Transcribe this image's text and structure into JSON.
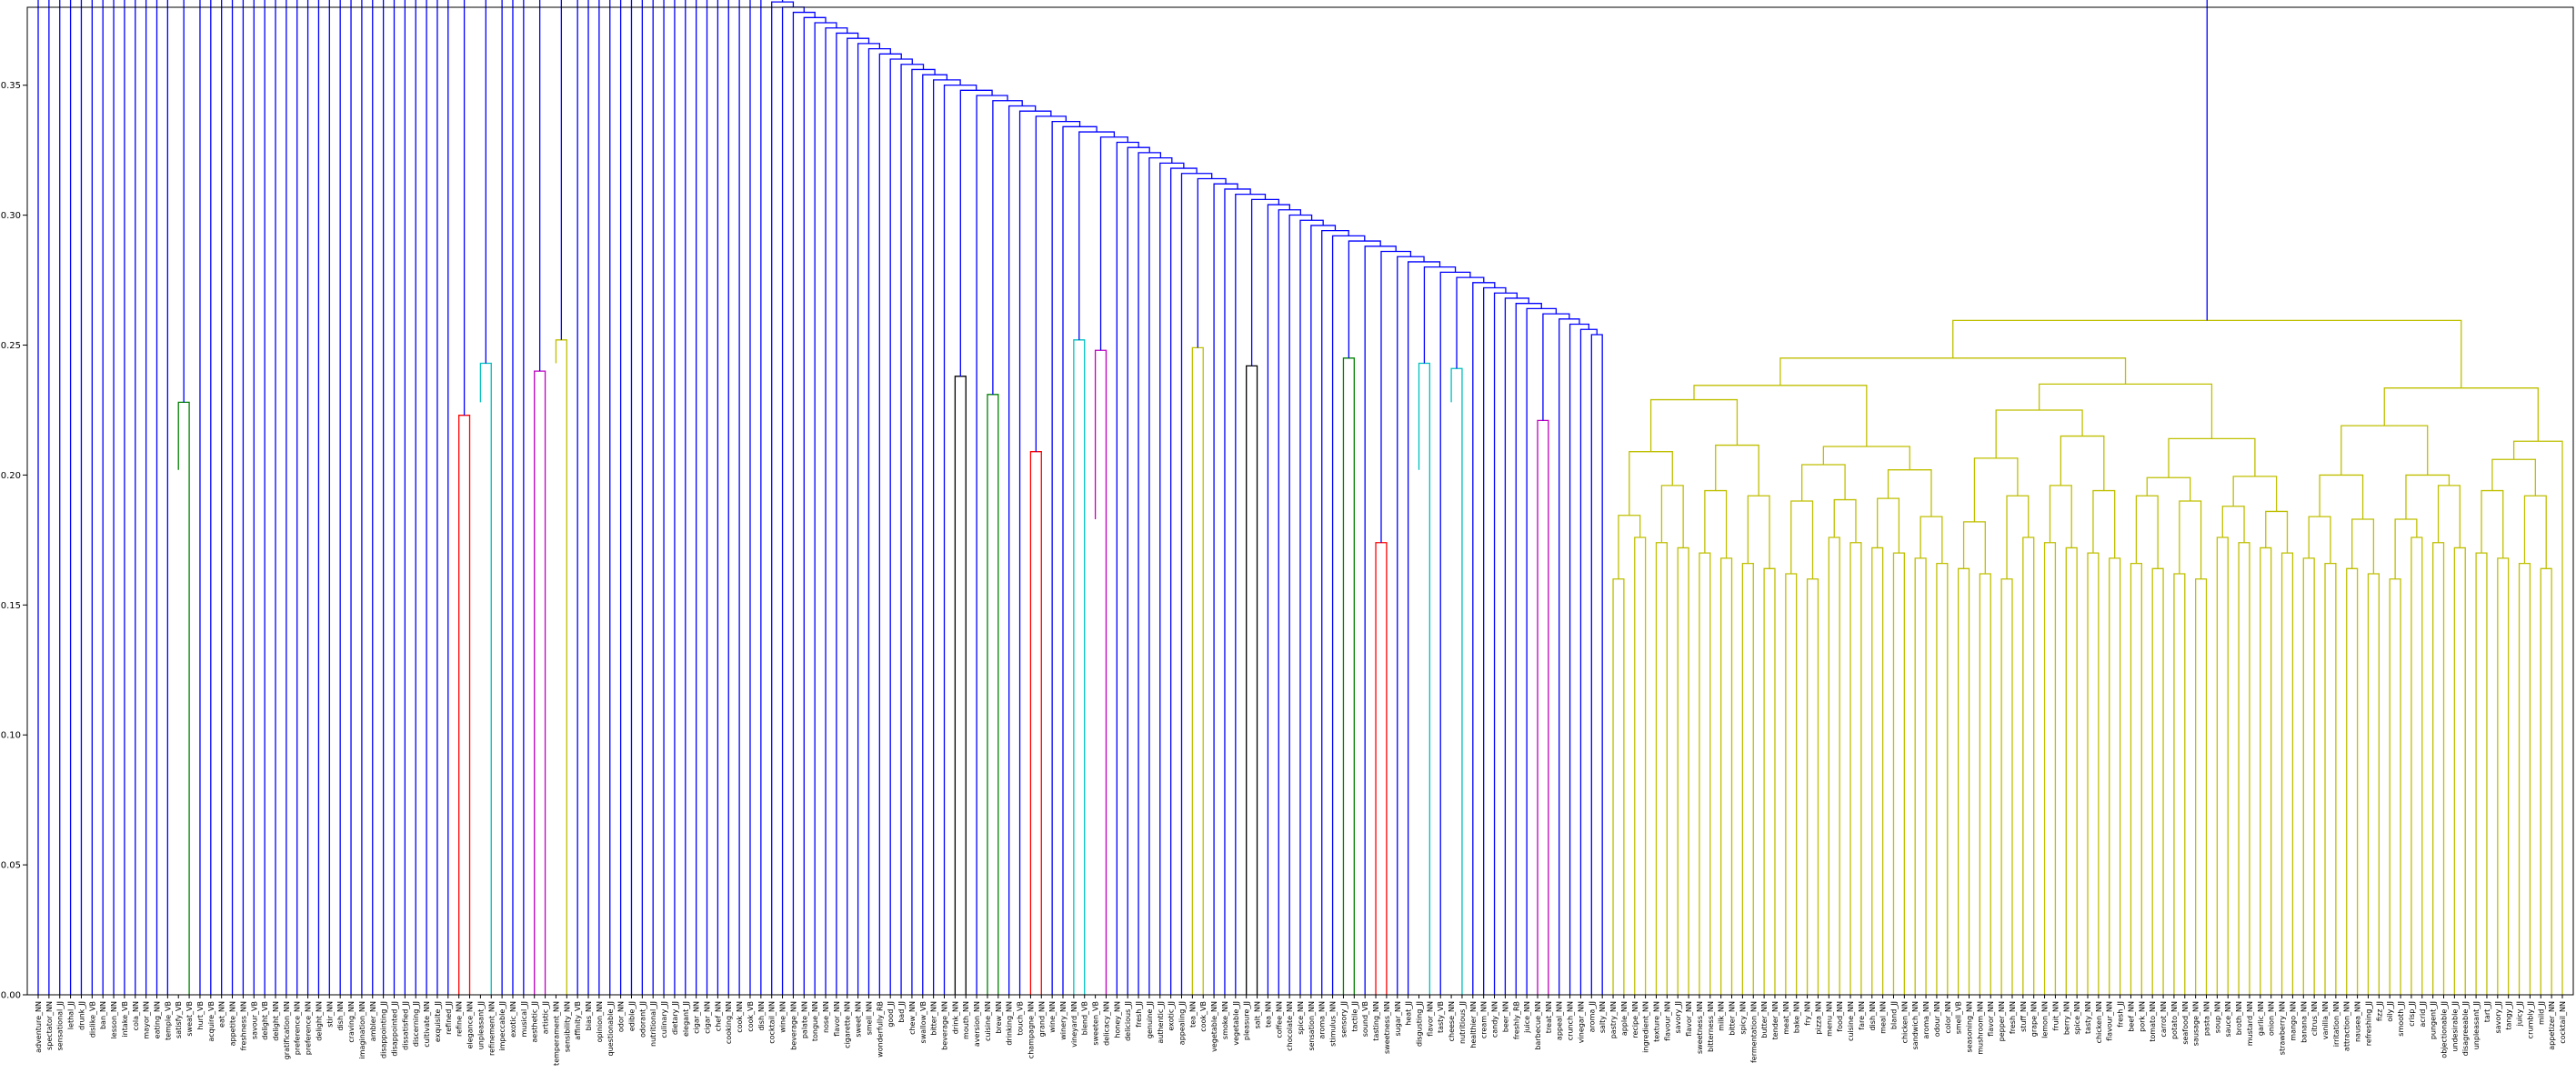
{
  "chart_data": {
    "type": "dendrogram",
    "title": "",
    "xlabel": "",
    "ylabel": "",
    "ylim": [
      0,
      0.38
    ],
    "y_ticks": [
      "0.00",
      "0.05",
      "0.10",
      "0.15",
      "0.20",
      "0.25",
      "0.30",
      "0.35"
    ],
    "grid": false,
    "colors": {
      "blue": "#0000ff",
      "green": "#008000",
      "red": "#ff0000",
      "cyan": "#00bfbf",
      "magenta": "#bf00bf",
      "yellow": "#bfbf00",
      "black": "#000000",
      "frame": "#000000"
    },
    "leaves": [
      "adventure_NN",
      "spectator_NN",
      "sensational_JJ",
      "lethal_JJ",
      "drunk_JJ",
      "dislike_VB",
      "ban_NN",
      "lesson_NN",
      "intake_VB",
      "cola_NN",
      "mayor_NN",
      "eating_NN",
      "temple_VB",
      "satisfy_VB",
      "sweat_VB",
      "hurt_VB",
      "acquire_VB",
      "eat_NN",
      "appetite_NN",
      "freshness_NN",
      "savour_VB",
      "delight_VB",
      "delight_NN",
      "gratification_NN",
      "preference_NN",
      "preference_NN",
      "delight_NN",
      "stir_NN",
      "dish_NN",
      "craving_NN",
      "imagination_NN",
      "ambler_NN",
      "disappointing_JJ",
      "disappointed_JJ",
      "dissatisfied_JJ",
      "discerning_JJ",
      "cultivate_NN",
      "exquisite_JJ",
      "refined_JJ",
      "refine_NN",
      "elegance_NN",
      "unpleasant_JJ",
      "refinement_NN",
      "impeccable_JJ",
      "exotic_NN",
      "musical_JJ",
      "aesthetic_JJ",
      "artistic_JJ",
      "temperament_NN",
      "sensibility_NN",
      "affinity_VB",
      "bias_NN",
      "opinion_NN",
      "questionable_JJ",
      "odor_NN",
      "edible_JJ",
      "odorant_JJ",
      "nutritional_JJ",
      "culinary_JJ",
      "dietary_JJ",
      "elegant_JJ",
      "cigar_NN",
      "cigar_NN",
      "chef_NN",
      "cooking_NN",
      "cook_NN",
      "cook_VB",
      "dish_NN",
      "cocktail_NN",
      "wine_NN",
      "beverage_NN",
      "palate_NN",
      "tongue_NN",
      "nose_NN",
      "flavor_NN",
      "cigarette_NN",
      "sweet_NN",
      "smell_NN",
      "wonderfully_RB",
      "good_JJ",
      "bad_JJ",
      "chew_NN",
      "swallow_VB",
      "bitter_NN",
      "beverage_NN",
      "drink_NN",
      "mouth_NN",
      "aversion_NN",
      "cuisine_NN",
      "brew_NN",
      "drinking_NN",
      "touch_VB",
      "champagne_NN",
      "grand_NN",
      "wine_NN",
      "winery_NN",
      "vineyard_NN",
      "blend_VB",
      "sweeten_VB",
      "delicacy_NN",
      "honey_NN",
      "delicious_JJ",
      "fresh_JJ",
      "genuine_JJ",
      "authentic_JJ",
      "exotic_JJ",
      "appealing_JJ",
      "tea_NN",
      "cook_VB",
      "vegetable_NN",
      "smoke_NN",
      "vegetable_JJ",
      "pleasure_JJ",
      "salt_NN",
      "tea_NN",
      "coffee_NN",
      "chocolate_NN",
      "spice_NN",
      "sensation_NN",
      "aroma_NN",
      "stimulus_NN",
      "sensory_JJ",
      "tactile_JJ",
      "sound_VB",
      "tasting_NN",
      "sweetness_NN",
      "sugar_NN",
      "heat_JJ",
      "disgusting_JJ",
      "flavor_NN",
      "tasty_VB",
      "cheese_NN",
      "nutritious_JJ",
      "healthier_NN",
      "cream_NN",
      "candy_NN",
      "beer_NN",
      "freshly_RB",
      "juice_NN",
      "barbecue_NN",
      "treat_NN",
      "appeal_NN",
      "crunch_NN",
      "vinegar_NN",
      "aroma_JJ",
      "salty_NN",
      "pastry_NN",
      "apple_NN",
      "recipe_NN",
      "ingredient_NN",
      "texture_NN",
      "flavour_NN",
      "savory_JJ",
      "flavor_NN",
      "sweetness_NN",
      "bitterness_NN",
      "milk_NN",
      "bitter_NN",
      "spicy_NN",
      "fermentation_NN",
      "butter_NN",
      "tender_NN",
      "meat_NN",
      "bake_NN",
      "fry_NN",
      "pizza_NN",
      "menu_NN",
      "food_NN",
      "cuisine_NN",
      "fare_NN",
      "dish_NN",
      "meal_NN",
      "bland_JJ",
      "chicken_NN",
      "sandwich_NN",
      "aroma_NN",
      "odour_NN",
      "color_NN",
      "smell_VB",
      "seasoning_NN",
      "mushroom_NN",
      "flavor_NN",
      "pepper_NN",
      "fresh_NN",
      "stuff_NN",
      "grape_NN",
      "lemon_NN",
      "fruit_NN",
      "berry_NN",
      "spice_NN",
      "tasty_NN",
      "chicken_NN",
      "flavour_NN",
      "fresh_JJ",
      "beef_NN",
      "pork_NN",
      "tomato_NN",
      "carrot_NN",
      "potato_NN",
      "seafood_NN",
      "sausage_NN",
      "pasta_NN",
      "soup_NN",
      "sauce_NN",
      "broth_NN",
      "mustard_NN",
      "garlic_NN",
      "onion_NN",
      "strawberry_NN",
      "mango_NN",
      "banana_NN",
      "citrus_NN",
      "vanilla_NN",
      "irritation_NN",
      "attraction_NN",
      "nausea_NN",
      "refreshing_JJ",
      "fizz_JJ",
      "oily_JJ",
      "smooth_JJ",
      "crisp_JJ",
      "acrid_JJ",
      "pungent_JJ",
      "objectionable_JJ",
      "undesirable_JJ",
      "disagreeable_JJ",
      "unpleasant_JJ",
      "tart_JJ",
      "savory_JJ",
      "tangy_JJ",
      "juicy_JJ",
      "crumbly_JJ",
      "mild_JJ",
      "appetizer_NN",
      "cocktail_NN"
    ]
  }
}
